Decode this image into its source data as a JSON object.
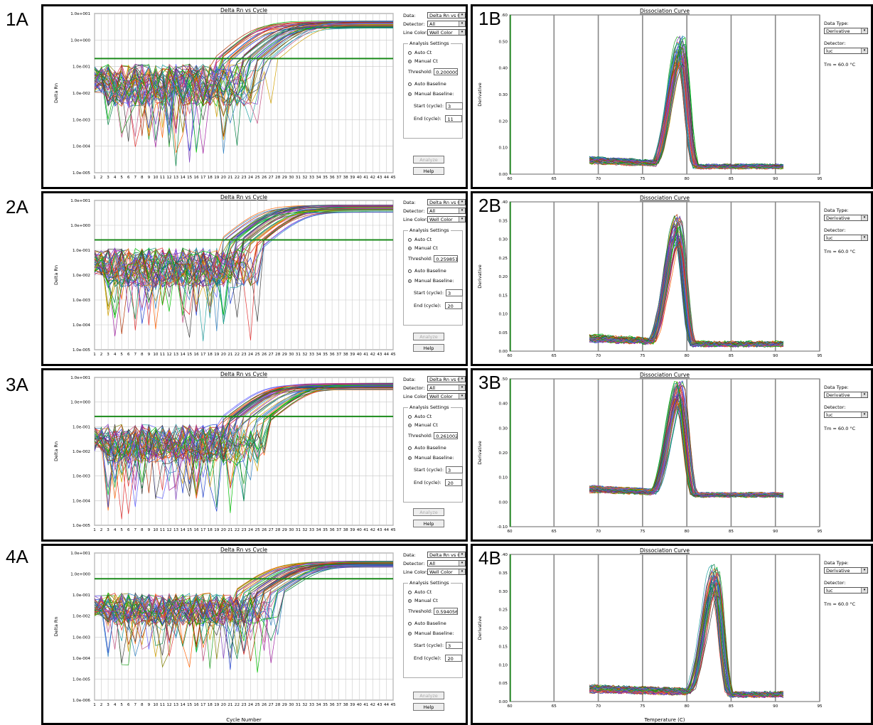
{
  "amp": {
    "title": "Delta Rn vs Cycle",
    "ylabel": "Delta Rn",
    "xlabel": "Cycle Number",
    "yticks_std": [
      "1.0e+001",
      "1.0e+000",
      "1.0e-001",
      "1.0e-002",
      "1.0e-003",
      "1.0e-004",
      "1.0e-005"
    ],
    "yticks_4a": [
      "1.0e+001",
      "1.0e+000",
      "1.0e-001",
      "1.0e-002",
      "1.0e-003",
      "1.0e-004",
      "1.0e-005",
      "1.0e-006"
    ],
    "xticks": [
      "1",
      "2",
      "3",
      "4",
      "5",
      "6",
      "7",
      "8",
      "9",
      "10",
      "11",
      "12",
      "13",
      "14",
      "15",
      "16",
      "17",
      "18",
      "19",
      "20",
      "21",
      "22",
      "23",
      "24",
      "25",
      "26",
      "27",
      "28",
      "29",
      "30",
      "31",
      "32",
      "33",
      "34",
      "35",
      "36",
      "37",
      "38",
      "39",
      "40",
      "41",
      "42",
      "43",
      "44",
      "45"
    ],
    "data_label": "Data:",
    "data_value": "Delta Rn vs Cycle",
    "detector_label": "Detector:",
    "detector_value": "All",
    "linecolor_label": "Line Color:",
    "linecolor_value": "Well Color",
    "analysis_title": "Analysis Settings",
    "auto_ct": "Auto Ct",
    "manual_ct": "Manual Ct",
    "threshold_label": "Threshold:",
    "auto_baseline": "Auto Baseline",
    "manual_baseline": "Manual Baseline:",
    "start_label": "Start (cycle):",
    "end_label": "End (cycle):",
    "analyze": "Analyze",
    "help": "Help"
  },
  "diss": {
    "title": "Dissociation Curve",
    "ylabel": "Derivative",
    "xlabel": "Temperature (C)",
    "xticks": [
      "60",
      "65",
      "70",
      "75",
      "80",
      "85",
      "90",
      "95"
    ],
    "datatype_label": "Data Type:",
    "datatype_value": "Derivative",
    "detector_label": "Detector:",
    "detector_value": "luc",
    "tm": "Tm = 60.0 °C"
  },
  "panels": [
    {
      "amp_label": "1A",
      "diss_label": "1B",
      "threshold": "0.2000000",
      "start": "3",
      "end": "11",
      "diss_yticks": [
        "0.60",
        "0.50",
        "0.40",
        "0.30",
        "0.20",
        "0.10",
        "0.00"
      ]
    },
    {
      "amp_label": "2A",
      "diss_label": "2B",
      "threshold": "0.2598519",
      "start": "3",
      "end": "20",
      "diss_yticks": [
        "0.40",
        "0.35",
        "0.30",
        "0.25",
        "0.20",
        "0.15",
        "0.10",
        "0.05",
        "0.00"
      ]
    },
    {
      "amp_label": "3A",
      "diss_label": "3B",
      "threshold": "0.2610026",
      "start": "3",
      "end": "20",
      "diss_yticks": [
        "0.50",
        "0.40",
        "0.30",
        "0.20",
        "0.10",
        "0.00",
        "-0.10"
      ]
    },
    {
      "amp_label": "4A",
      "diss_label": "4B",
      "threshold": "0.5940566",
      "start": "3",
      "end": "20",
      "diss_yticks": [
        "0.40",
        "0.35",
        "0.30",
        "0.25",
        "0.20",
        "0.15",
        "0.10",
        "0.05",
        "0.00"
      ]
    }
  ],
  "chart_data": [
    {
      "type": "line",
      "panel": "1A",
      "title": "Delta Rn vs Cycle",
      "ylabel": "Delta Rn",
      "yscale": "log",
      "ylim": [
        1e-05,
        10
      ],
      "xlim": [
        1,
        45
      ],
      "threshold": 0.2,
      "series_count": 48,
      "approx_ct_range": [
        24,
        34
      ],
      "plateau": 4.5,
      "baseline_level": 0.02
    },
    {
      "type": "line",
      "panel": "1B",
      "title": "Dissociation Curve",
      "ylabel": "Derivative",
      "xlim": [
        60,
        95
      ],
      "ylim": [
        0,
        0.6
      ],
      "peak_temperature": 79.3,
      "peak_height": 0.48,
      "start_temperature": 69,
      "end_temperature": 91
    },
    {
      "type": "line",
      "panel": "2A",
      "title": "Delta Rn vs Cycle",
      "ylabel": "Delta Rn",
      "yscale": "log",
      "ylim": [
        1e-05,
        10
      ],
      "xlim": [
        1,
        45
      ],
      "threshold": 0.2598519,
      "series_count": 48,
      "approx_ct_range": [
        25,
        32
      ],
      "plateau": 5.5,
      "baseline_level": 0.02
    },
    {
      "type": "line",
      "panel": "2B",
      "title": "Dissociation Curve",
      "ylabel": "Derivative",
      "xlim": [
        60,
        95
      ],
      "ylim": [
        0,
        0.4
      ],
      "peak_temperature": 79.0,
      "peak_height": 0.33,
      "start_temperature": 69,
      "end_temperature": 91
    },
    {
      "type": "line",
      "panel": "3A",
      "title": "Delta Rn vs Cycle",
      "ylabel": "Delta Rn",
      "yscale": "log",
      "ylim": [
        1e-05,
        10
      ],
      "xlim": [
        1,
        45
      ],
      "threshold": 0.2610026,
      "series_count": 48,
      "approx_ct_range": [
        25,
        33
      ],
      "plateau": 5.0,
      "baseline_level": 0.02
    },
    {
      "type": "line",
      "panel": "3B",
      "title": "Dissociation Curve",
      "ylabel": "Derivative",
      "xlim": [
        60,
        95
      ],
      "ylim": [
        -0.1,
        0.5
      ],
      "peak_temperature": 79.2,
      "peak_height": 0.45,
      "start_temperature": 69,
      "end_temperature": 91
    },
    {
      "type": "line",
      "panel": "4A",
      "title": "Delta Rn vs Cycle",
      "ylabel": "Delta Rn",
      "xlabel": "Cycle Number",
      "yscale": "log",
      "ylim": [
        1e-06,
        10
      ],
      "xlim": [
        1,
        45
      ],
      "threshold": 0.5940566,
      "series_count": 48,
      "approx_ct_range": [
        27,
        35
      ],
      "plateau": 3.5,
      "baseline_level": 0.02
    },
    {
      "type": "line",
      "panel": "4B",
      "title": "Dissociation Curve",
      "ylabel": "Derivative",
      "xlabel": "Temperature (C)",
      "xlim": [
        60,
        95
      ],
      "ylim": [
        0,
        0.4
      ],
      "peak_temperature": 83.2,
      "peak_height": 0.34,
      "start_temperature": 69,
      "end_temperature": 91
    }
  ],
  "colors": {
    "threshold": "#1a8a1a",
    "grid": "#c8c8c8",
    "frame": "#000000"
  }
}
